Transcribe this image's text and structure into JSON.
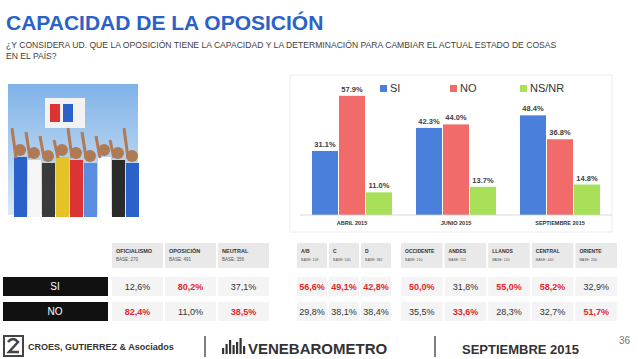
{
  "chart_data": {
    "type": "bar",
    "title": "CAPACIDAD DE LA OPOSICIÓN",
    "subtitle": "¿Y CONSIDERA UD. QUE LA OPOSICIÓN TIENE LA CAPACIDAD Y LA DETERMINACIÓN PARA CAMBIAR EL ACTUAL ESTADO DE COSAS EN EL PAÍS?",
    "categories": [
      "ABRIL 2015",
      "JUNIO 2015",
      "SEPTIEMBRE 2015"
    ],
    "series": [
      {
        "name": "SI",
        "color": "#4a7fdb",
        "values": [
          31.1,
          42.3,
          48.4
        ],
        "value_labels": [
          "31.1%",
          "42.3%",
          "48.4%"
        ]
      },
      {
        "name": "NO",
        "color": "#f26b6b",
        "values": [
          57.9,
          44.0,
          36.8
        ],
        "value_labels": [
          "57.9%",
          "44.0%",
          "36.8%"
        ]
      },
      {
        "name": "NS/NR",
        "color": "#a8e05a",
        "values": [
          11.0,
          13.7,
          14.8
        ],
        "value_labels": [
          "11.0%",
          "13.7%",
          "14.8%"
        ]
      }
    ],
    "ylim": [
      0,
      68
    ],
    "yticks": [],
    "tick_labels": "x",
    "data_labels": true,
    "legend": "top",
    "grid": false
  },
  "table": {
    "groups": [
      {
        "columns": [
          {
            "name": "OFICIALISMO",
            "base": "BASE: 270"
          },
          {
            "name": "OPOSICIÓN",
            "base": "BASE: 491"
          },
          {
            "name": "NEUTRAL",
            "base": "BASE: 356"
          }
        ]
      },
      {
        "columns": [
          {
            "name": "A/B",
            "base": "BASE: 109"
          },
          {
            "name": "C",
            "base": "BASE: 540"
          },
          {
            "name": "D",
            "base": "BASE: 382"
          }
        ]
      },
      {
        "columns": [
          {
            "name": "OCCIDENTE",
            "base": "BASE: 210"
          },
          {
            "name": "ANDES",
            "base": "BASE: 112"
          },
          {
            "name": "LLANOS",
            "base": "BASE: 120"
          },
          {
            "name": "CENTRAL",
            "base": "BASE: 440"
          },
          {
            "name": "ORIENTE",
            "base": "BASE: 200"
          }
        ]
      }
    ],
    "rows": [
      {
        "label": "SI",
        "cells": [
          "12,6%",
          "80,2%",
          "37,1%",
          "56,6%",
          "49,1%",
          "42,8%",
          "50,0%",
          "31,8%",
          "55,0%",
          "58,2%",
          "32,9%"
        ],
        "colors": [
          "#333333",
          "#e3262c",
          "#333333",
          "#e3262c",
          "#e3262c",
          "#e3262c",
          "#e3262c",
          "#333333",
          "#e3262c",
          "#e3262c",
          "#333333"
        ]
      },
      {
        "label": "NO",
        "cells": [
          "82,4%",
          "11,0%",
          "38,5%",
          "29,8%",
          "38,1%",
          "38,4%",
          "35,5%",
          "33,6%",
          "28,3%",
          "32,7%",
          "51,7%"
        ],
        "colors": [
          "#e3262c",
          "#333333",
          "#e3262c",
          "#333333",
          "#333333",
          "#333333",
          "#333333",
          "#e3262c",
          "#333333",
          "#333333",
          "#e3262c"
        ]
      }
    ]
  },
  "footer": {
    "company": "CROES, GUTIERREZ & Asociados",
    "brand": "VENEBAROMETRO",
    "date": "SEPTIEMBRE 2015",
    "page": "36"
  }
}
